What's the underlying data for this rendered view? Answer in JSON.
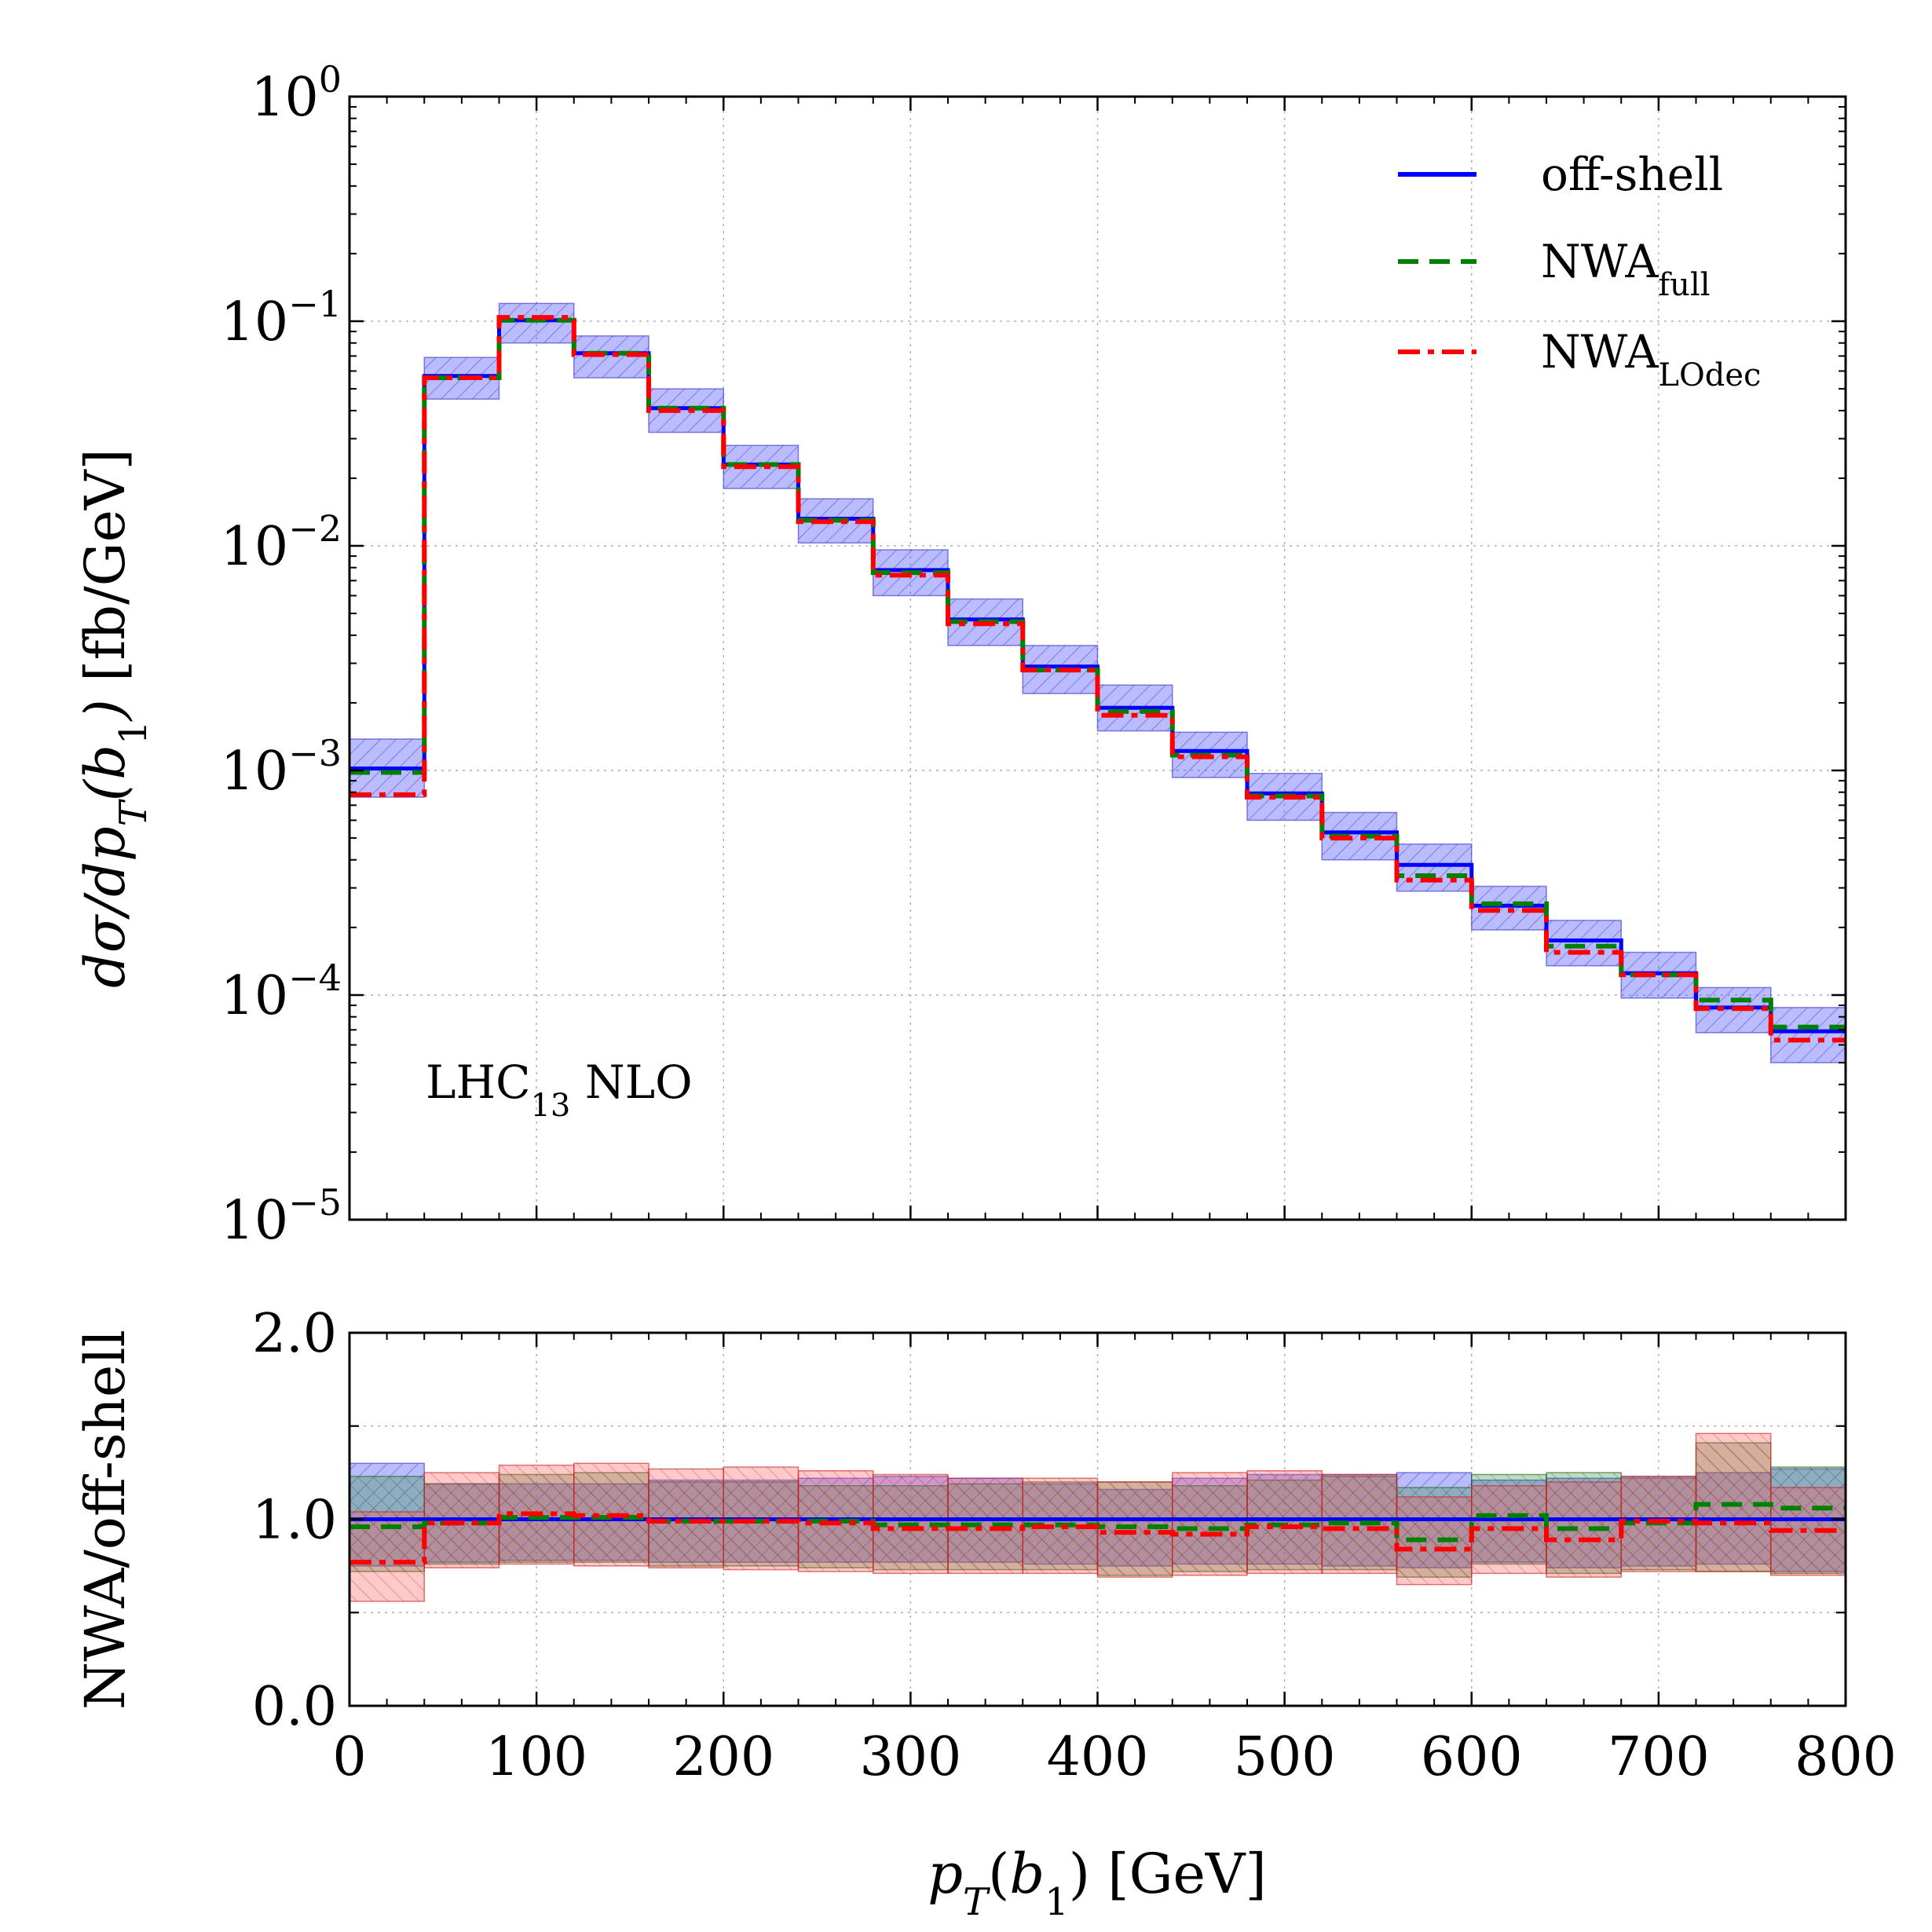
{
  "figure": {
    "annotation": "LHC",
    "annotation_sub": "13",
    "annotation_tail": " NLO"
  },
  "chart_data": [
    {
      "type": "line",
      "panel": "main",
      "step": true,
      "yscale": "log",
      "xlabel": "pT(b1) [GeV]",
      "ylabel": "dσ/dpT(b1) [fb/GeV]",
      "xlim": [
        0,
        800
      ],
      "ylim": [
        1e-05,
        1
      ],
      "grid": true,
      "legend_position": "top-right",
      "bin_edges": [
        0,
        40,
        80,
        120,
        160,
        200,
        240,
        280,
        320,
        360,
        400,
        440,
        480,
        520,
        560,
        600,
        640,
        680,
        720,
        760,
        800
      ],
      "y_tick_labels": [
        {
          "value": 1,
          "base": "10",
          "exp": "0"
        },
        {
          "value": 0.1,
          "base": "10",
          "exp": "−1"
        },
        {
          "value": 0.01,
          "base": "10",
          "exp": "−2"
        },
        {
          "value": 0.001,
          "base": "10",
          "exp": "−3"
        },
        {
          "value": 0.0001,
          "base": "10",
          "exp": "−4"
        },
        {
          "value": 1e-05,
          "base": "10",
          "exp": "−5"
        }
      ],
      "x_tick_labels": [
        "0",
        "100",
        "200",
        "300",
        "400",
        "500",
        "600",
        "700",
        "800"
      ],
      "x_tick_values": [
        0,
        100,
        200,
        300,
        400,
        500,
        600,
        700,
        800
      ],
      "series": [
        {
          "name": "off-shell",
          "color": "#0000ff",
          "style": "solid",
          "values": [
            0.00102,
            0.057,
            0.101,
            0.072,
            0.041,
            0.023,
            0.0132,
            0.0078,
            0.0047,
            0.0029,
            0.0019,
            0.00122,
            0.00079,
            0.00053,
            0.00038,
            0.00025,
            0.000175,
            0.000125,
            8.8e-05,
            6.9e-05
          ],
          "band_low": [
            0.00076,
            0.045,
            0.08,
            0.056,
            0.032,
            0.018,
            0.0103,
            0.006,
            0.0036,
            0.0022,
            0.0015,
            0.00093,
            0.0006,
            0.0004,
            0.00029,
            0.000195,
            0.000135,
            9.7e-05,
            6.8e-05,
            5e-05
          ],
          "band_high": [
            0.00138,
            0.069,
            0.12,
            0.086,
            0.05,
            0.028,
            0.0162,
            0.0096,
            0.0058,
            0.0036,
            0.0024,
            0.00148,
            0.00097,
            0.00065,
            0.00047,
            0.000305,
            0.000215,
            0.000155,
            0.000108,
            8.8e-05
          ]
        },
        {
          "name": "NWA",
          "subscript": "full",
          "color": "#008000",
          "style": "dashed",
          "values": [
            0.00098,
            0.056,
            0.101,
            0.072,
            0.041,
            0.023,
            0.013,
            0.0076,
            0.0046,
            0.0028,
            0.00183,
            0.00117,
            0.00077,
            0.00051,
            0.00034,
            0.000255,
            0.000165,
            0.000123,
            9.5e-05,
            7.2e-05
          ]
        },
        {
          "name": "NWA",
          "subscript": "LOdec",
          "color": "#ff0000",
          "style": "dashdot",
          "values": [
            0.00078,
            0.056,
            0.104,
            0.071,
            0.04,
            0.0225,
            0.0128,
            0.0074,
            0.0045,
            0.0028,
            0.00176,
            0.00115,
            0.00076,
            0.0005,
            0.000325,
            0.000238,
            0.000155,
            0.000123,
            8.7e-05,
            6.3e-05
          ]
        }
      ]
    },
    {
      "type": "line",
      "panel": "ratio",
      "step": true,
      "xlabel": "pT(b1) [GeV]",
      "ylabel": "NWA/off-shell",
      "xlim": [
        0,
        800
      ],
      "ylim": [
        0,
        2
      ],
      "grid": true,
      "y_tick_labels": [
        "0.0",
        "1.0",
        "2.0"
      ],
      "y_tick_values": [
        0,
        1,
        2
      ],
      "x_tick_labels": [
        "0",
        "100",
        "200",
        "300",
        "400",
        "500",
        "600",
        "700",
        "800"
      ],
      "bin_edges": [
        0,
        40,
        80,
        120,
        160,
        200,
        240,
        280,
        320,
        360,
        400,
        440,
        480,
        520,
        560,
        600,
        640,
        680,
        720,
        760,
        800
      ],
      "series": [
        {
          "name": "off-shell",
          "color": "#0000ff",
          "style": "solid",
          "values": [
            1,
            1,
            1,
            1,
            1,
            1,
            1,
            1,
            1,
            1,
            1,
            1,
            1,
            1,
            1,
            1,
            1,
            1,
            1,
            1
          ],
          "band_low": [
            0.75,
            0.77,
            0.78,
            0.78,
            0.77,
            0.77,
            0.77,
            0.77,
            0.77,
            0.76,
            0.75,
            0.76,
            0.76,
            0.75,
            0.74,
            0.77,
            0.74,
            0.75,
            0.76,
            0.72
          ],
          "band_high": [
            1.3,
            1.19,
            1.19,
            1.19,
            1.21,
            1.21,
            1.22,
            1.23,
            1.22,
            1.19,
            1.16,
            1.22,
            1.24,
            1.24,
            1.25,
            1.21,
            1.22,
            1.23,
            1.25,
            1.27
          ]
        },
        {
          "name": "NWA",
          "subscript": "full",
          "color": "#008000",
          "style": "dashed",
          "values": [
            0.96,
            0.98,
            1.01,
            1.01,
            0.99,
            0.99,
            0.99,
            0.97,
            0.97,
            0.97,
            0.96,
            0.95,
            0.97,
            0.98,
            0.89,
            1.02,
            0.95,
            0.98,
            1.08,
            1.06
          ],
          "band_low": [
            0.72,
            0.76,
            0.77,
            0.77,
            0.75,
            0.75,
            0.74,
            0.73,
            0.73,
            0.73,
            0.7,
            0.72,
            0.73,
            0.73,
            0.69,
            0.76,
            0.71,
            0.73,
            0.72,
            0.71
          ],
          "band_high": [
            1.23,
            1.19,
            1.24,
            1.25,
            1.2,
            1.2,
            1.18,
            1.18,
            1.19,
            1.2,
            1.2,
            1.18,
            1.21,
            1.23,
            1.17,
            1.24,
            1.25,
            1.22,
            1.41,
            1.28
          ]
        },
        {
          "name": "NWA",
          "subscript": "LOdec",
          "color": "#ff0000",
          "style": "dashdot",
          "values": [
            0.77,
            0.98,
            1.03,
            1.02,
            0.99,
            0.99,
            0.98,
            0.95,
            0.95,
            0.96,
            0.93,
            0.92,
            0.96,
            0.95,
            0.84,
            0.95,
            0.89,
            0.99,
            0.98,
            0.94
          ],
          "band_low": [
            0.56,
            0.74,
            0.76,
            0.75,
            0.74,
            0.73,
            0.72,
            0.71,
            0.71,
            0.71,
            0.69,
            0.7,
            0.71,
            0.71,
            0.65,
            0.71,
            0.69,
            0.72,
            0.72,
            0.7
          ],
          "band_high": [
            1.04,
            1.25,
            1.29,
            1.3,
            1.27,
            1.28,
            1.26,
            1.24,
            1.22,
            1.22,
            1.2,
            1.25,
            1.26,
            1.24,
            1.12,
            1.18,
            1.2,
            1.23,
            1.46,
            1.17
          ]
        }
      ]
    }
  ]
}
